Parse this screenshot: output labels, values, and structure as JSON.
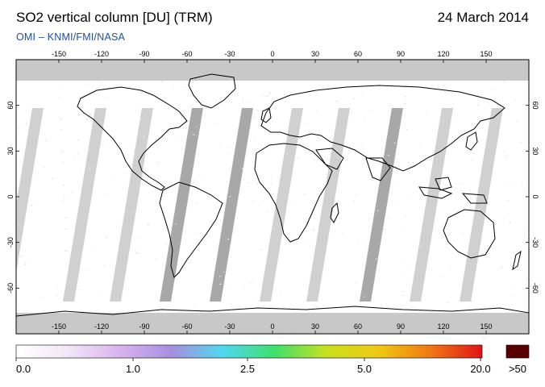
{
  "header": {
    "title": "SO2 vertical column [DU] (TRM)",
    "date": "24 March 2014",
    "credit": "OMI  –  KNMI/FMI/NASA"
  },
  "map": {
    "projection": "equirectangular",
    "lon_range": [
      -180,
      180
    ],
    "lat_range": [
      -90,
      90
    ],
    "lon_ticks": [
      -150,
      -120,
      -90,
      -60,
      -30,
      0,
      30,
      60,
      90,
      120,
      150
    ],
    "lat_ticks": [
      60,
      30,
      0,
      -30,
      -60
    ],
    "background_color": "#ffffff",
    "missing_data_color": "#c8c8c8",
    "overlap_swath_color": "#999999",
    "coastline_color": "#000000"
  },
  "colorbar": {
    "tick_labels": [
      "0.0",
      "1.0",
      "2.5",
      "5.0",
      "20.0"
    ],
    "overflow_label": ">50",
    "overflow_color": "#5a0000",
    "colors": [
      "#ffffff",
      "#f2e6f7",
      "#d9b3ee",
      "#a68ee0",
      "#4fd8f0",
      "#3ee06a",
      "#c8e01e",
      "#f0c814",
      "#f07814",
      "#e01414"
    ]
  }
}
